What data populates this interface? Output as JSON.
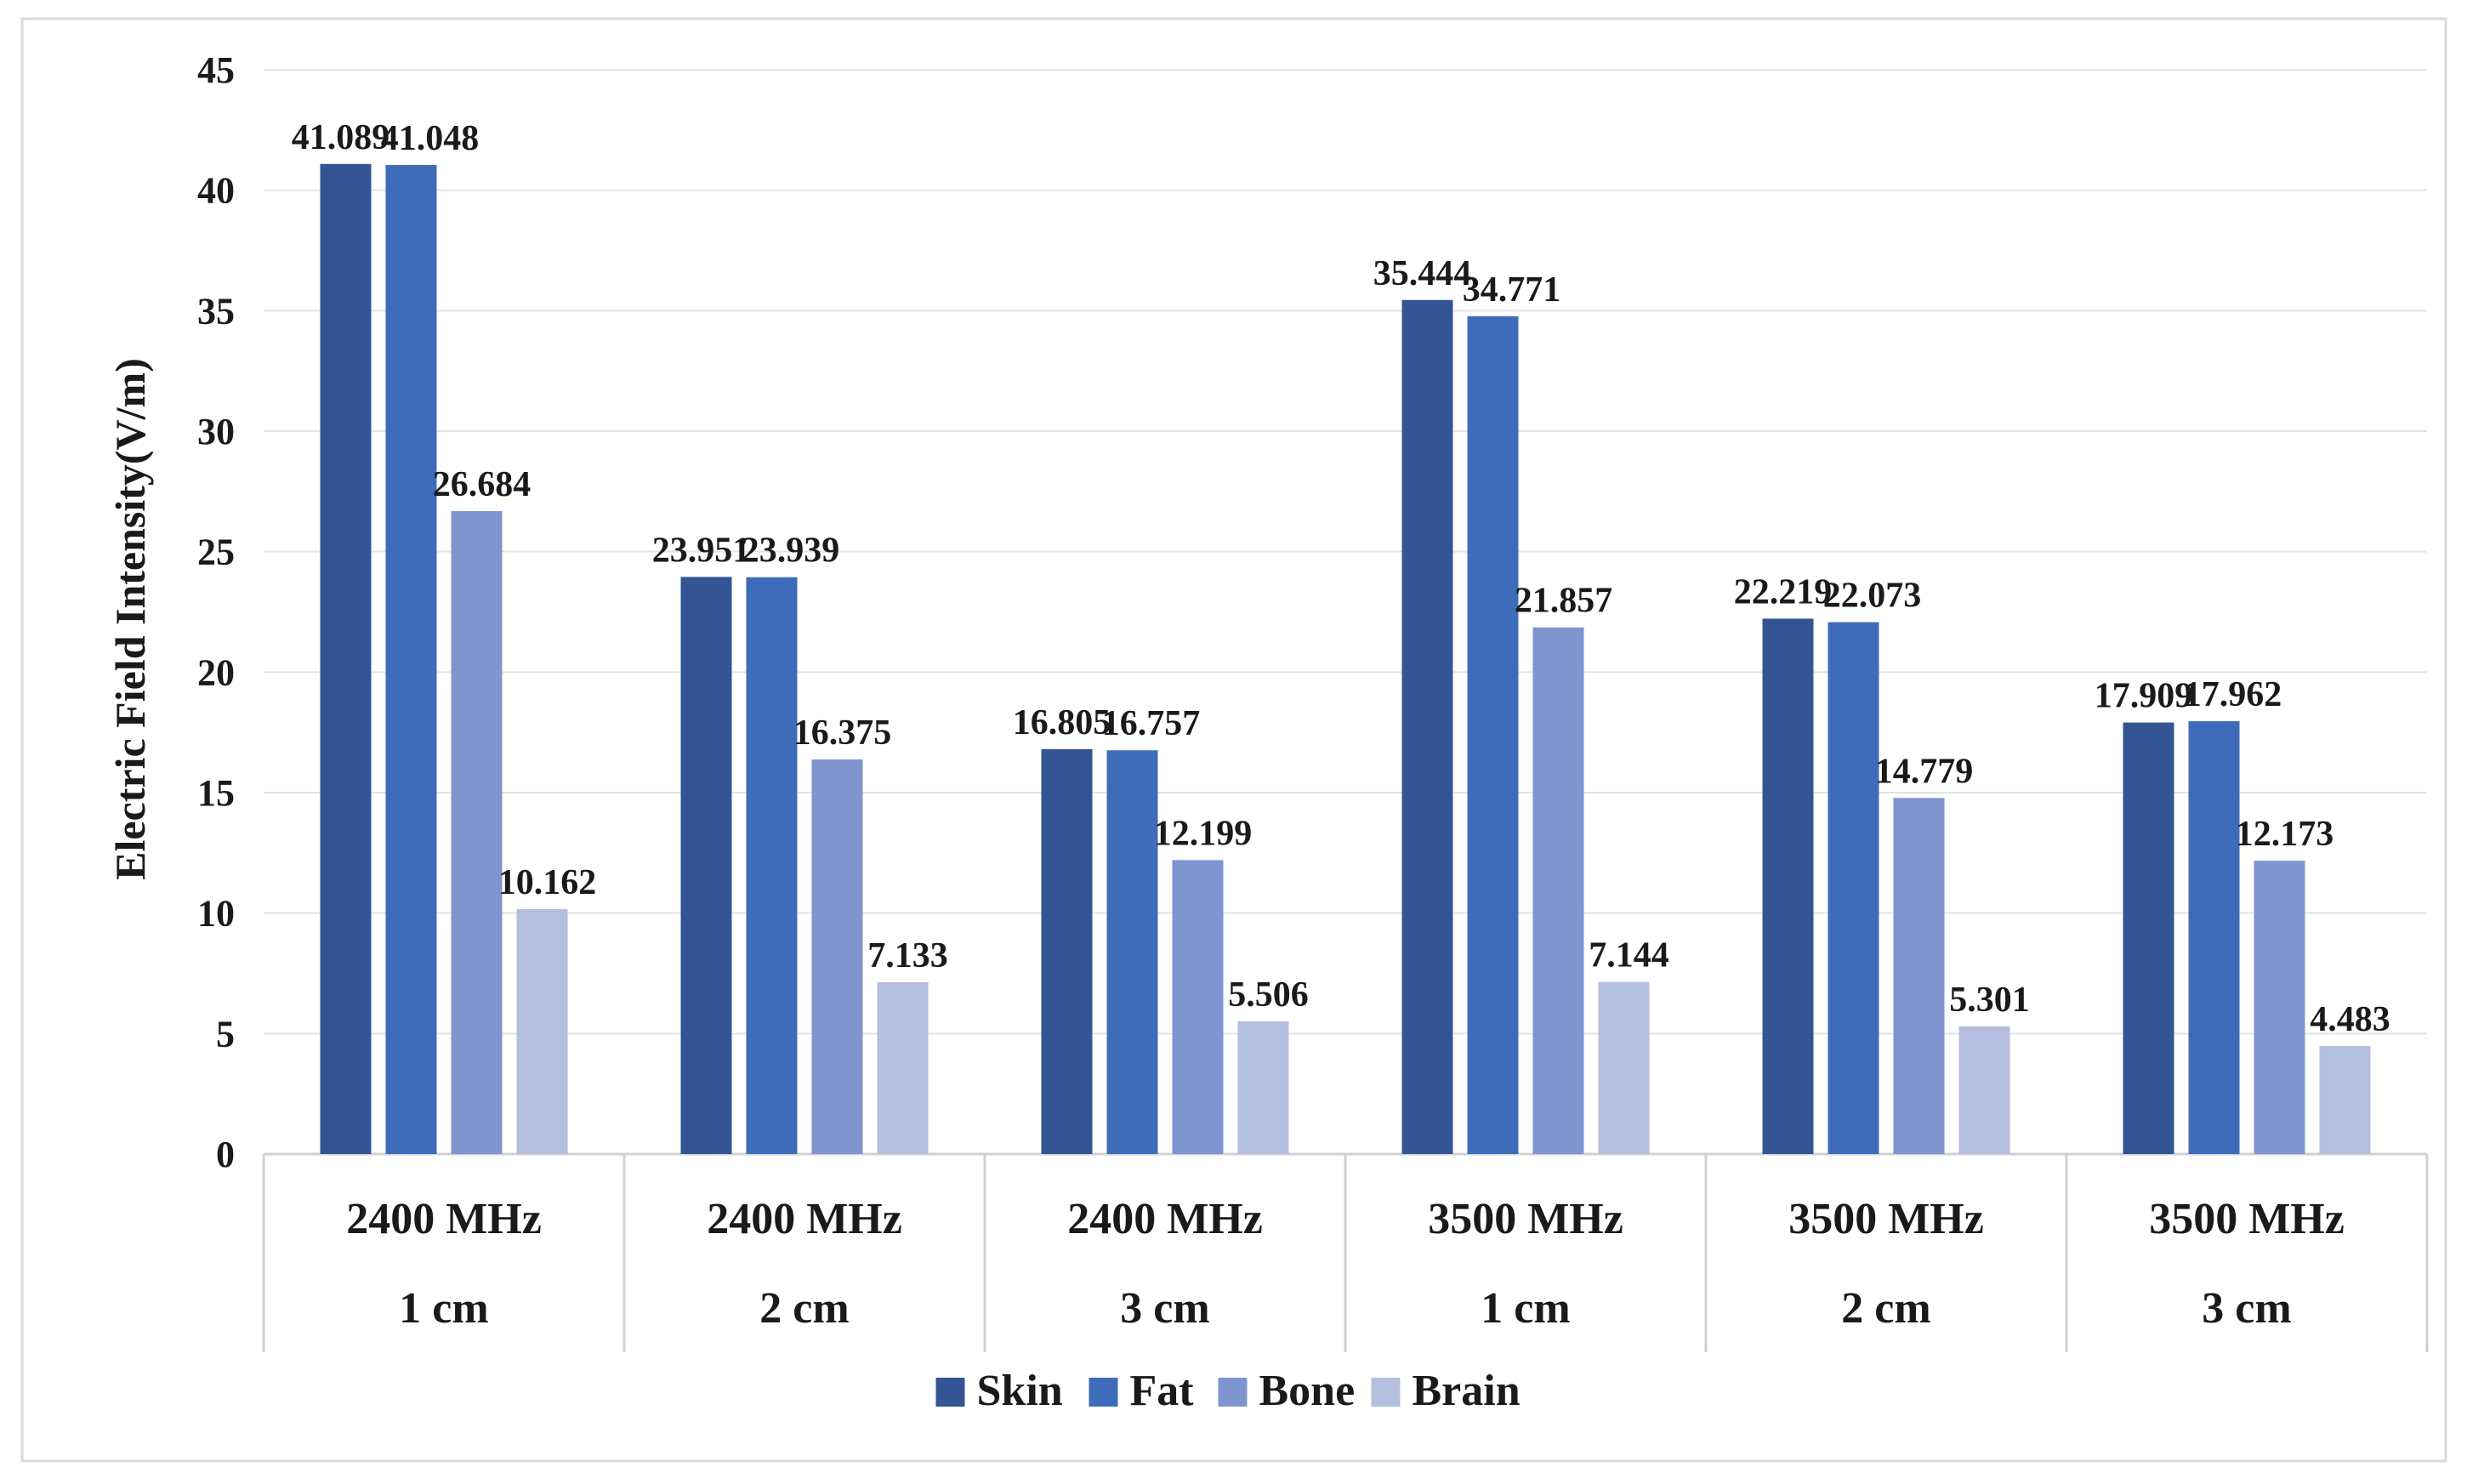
{
  "chart_data": {
    "type": "bar",
    "title": "",
    "ylabel": "Electric Field Intensity(V/m)",
    "xlabel": "",
    "ylim": [
      0,
      45
    ],
    "yticks": [
      0,
      5,
      10,
      15,
      20,
      25,
      30,
      35,
      40,
      45
    ],
    "categories": [
      {
        "frequency": "2400 MHz",
        "depth": "1 cm"
      },
      {
        "frequency": "2400 MHz",
        "depth": "2 cm"
      },
      {
        "frequency": "2400 MHz",
        "depth": "3 cm"
      },
      {
        "frequency": "3500 MHz",
        "depth": "1 cm"
      },
      {
        "frequency": "3500 MHz",
        "depth": "2 cm"
      },
      {
        "frequency": "3500 MHz",
        "depth": "3 cm"
      }
    ],
    "series": [
      {
        "name": "Skin",
        "color": "#335593",
        "values": [
          41.089,
          23.951,
          16.805,
          35.444,
          22.219,
          17.909
        ]
      },
      {
        "name": "Fat",
        "color": "#3f6cba",
        "values": [
          41.048,
          23.939,
          16.757,
          34.771,
          22.073,
          17.962
        ]
      },
      {
        "name": "Bone",
        "color": "#7e95d0",
        "values": [
          26.684,
          16.375,
          12.199,
          21.857,
          14.779,
          12.173
        ]
      },
      {
        "name": "Brain",
        "color": "#b4bedf",
        "values": [
          10.162,
          7.133,
          5.506,
          7.144,
          5.301,
          4.483
        ]
      }
    ],
    "data_labels": [
      [
        "41.089",
        "23.951",
        "16.805",
        "35.444",
        "22.219",
        "17.909"
      ],
      [
        "41.048",
        "23.939",
        "16.757",
        "34.771",
        "22.073",
        "17.962"
      ],
      [
        "26.684",
        "16.375",
        "12.199",
        "21.857",
        "14.779",
        "12.173"
      ],
      [
        "10.162",
        "7.133",
        "5.506",
        "7.144",
        "5.301",
        "4.483"
      ]
    ],
    "grid": true,
    "legend_position": "bottom-center"
  }
}
